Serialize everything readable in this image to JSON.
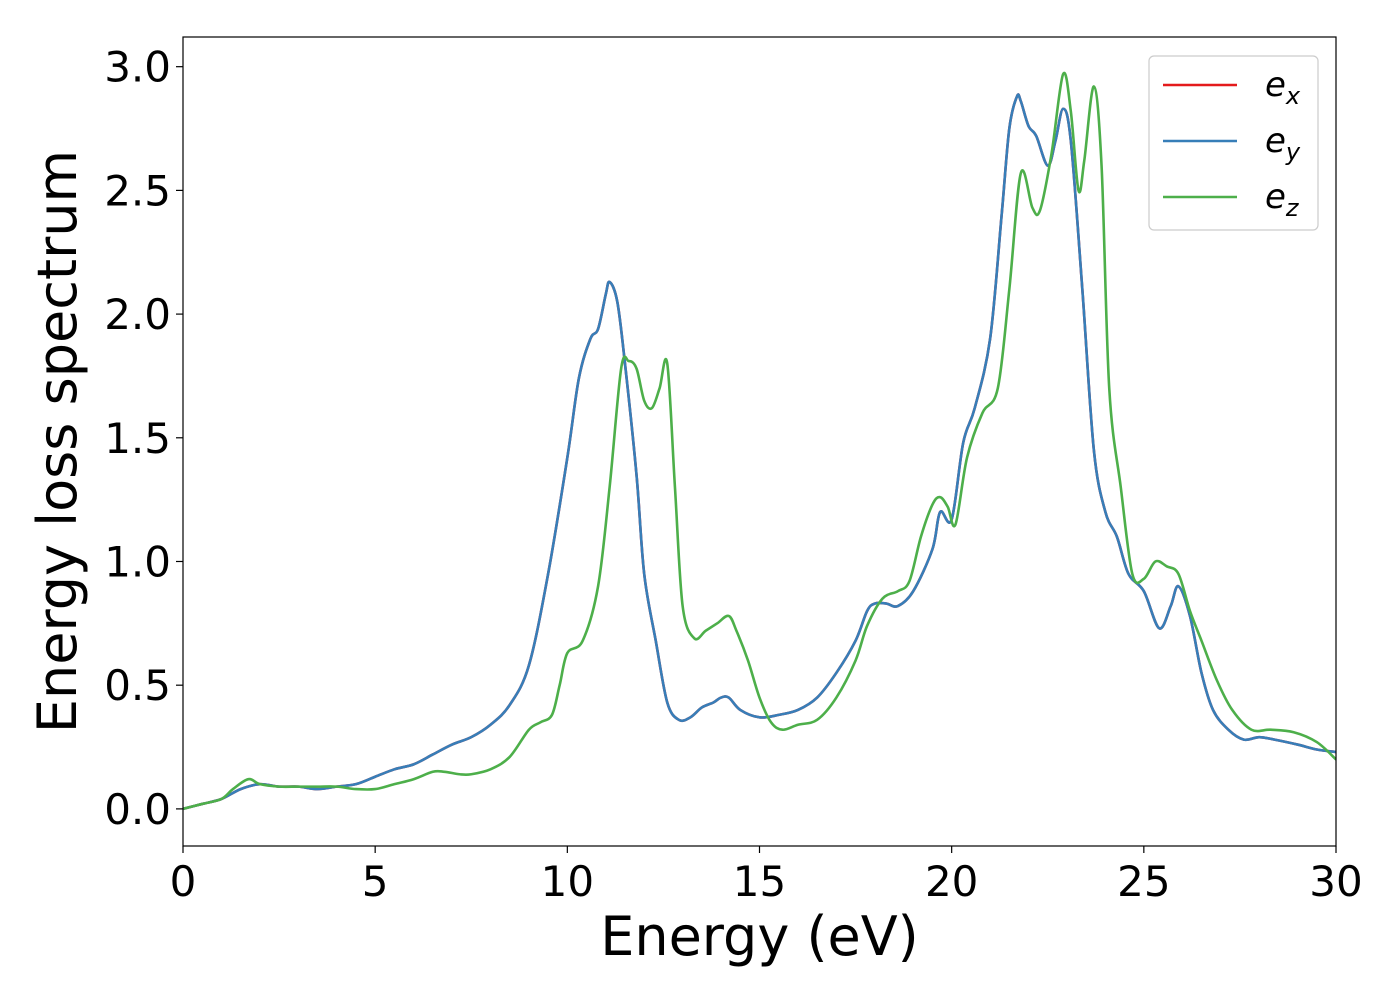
{
  "chart_data": {
    "type": "line",
    "title": "",
    "xlabel": "Energy (eV)",
    "ylabel": "Energy loss spectrum",
    "xlim": [
      0,
      30
    ],
    "ylim": [
      -0.15,
      3.12
    ],
    "xticks": [
      0,
      5,
      10,
      15,
      20,
      25,
      30
    ],
    "xtick_labels": [
      "0",
      "5",
      "10",
      "15",
      "20",
      "25",
      "30"
    ],
    "yticks": [
      0.0,
      0.5,
      1.0,
      1.5,
      2.0,
      2.5,
      3.0
    ],
    "ytick_labels": [
      "0.0",
      "0.5",
      "1.0",
      "1.5",
      "2.0",
      "2.5",
      "3.0"
    ],
    "grid": false,
    "legend_position": "top-right",
    "series": [
      {
        "name": "e_x",
        "legend_base": "e",
        "legend_sub": "x",
        "color": "#e41a1c",
        "x": [
          0,
          0.5,
          1,
          1.5,
          2,
          2.5,
          3,
          3.5,
          4,
          4.5,
          5,
          5.5,
          6,
          6.5,
          7,
          7.5,
          8,
          8.5,
          9,
          9.5,
          10,
          10.3,
          10.6,
          10.8,
          11,
          11.1,
          11.3,
          11.5,
          11.8,
          12,
          12.3,
          12.6,
          12.9,
          13.2,
          13.5,
          13.8,
          14,
          14.2,
          14.5,
          15,
          15.5,
          16,
          16.5,
          17,
          17.5,
          17.8,
          18,
          18.3,
          18.6,
          19,
          19.5,
          19.7,
          20,
          20.3,
          20.6,
          21,
          21.3,
          21.5,
          21.7,
          21.8,
          22,
          22.2,
          22.5,
          22.7,
          22.9,
          23.1,
          23.4,
          23.7,
          24,
          24.3,
          24.6,
          25,
          25.4,
          25.7,
          25.9,
          26.2,
          26.5,
          26.8,
          27.2,
          27.6,
          28,
          28.4,
          29,
          29.5,
          30
        ],
        "y": [
          0,
          0.02,
          0.04,
          0.08,
          0.1,
          0.09,
          0.09,
          0.08,
          0.09,
          0.1,
          0.13,
          0.16,
          0.18,
          0.22,
          0.26,
          0.29,
          0.34,
          0.42,
          0.58,
          0.95,
          1.42,
          1.74,
          1.9,
          1.94,
          2.08,
          2.13,
          2.05,
          1.8,
          1.35,
          0.95,
          0.68,
          0.43,
          0.36,
          0.37,
          0.41,
          0.43,
          0.45,
          0.45,
          0.4,
          0.37,
          0.38,
          0.4,
          0.45,
          0.55,
          0.68,
          0.8,
          0.83,
          0.83,
          0.82,
          0.88,
          1.05,
          1.2,
          1.17,
          1.48,
          1.62,
          1.9,
          2.4,
          2.75,
          2.88,
          2.86,
          2.76,
          2.72,
          2.6,
          2.7,
          2.83,
          2.7,
          2.1,
          1.45,
          1.2,
          1.1,
          0.95,
          0.88,
          0.73,
          0.82,
          0.9,
          0.78,
          0.55,
          0.4,
          0.32,
          0.28,
          0.29,
          0.28,
          0.26,
          0.24,
          0.23
        ]
      },
      {
        "name": "e_y",
        "legend_base": "e",
        "legend_sub": "y",
        "color": "#377eb8",
        "x": [
          0,
          0.5,
          1,
          1.5,
          2,
          2.5,
          3,
          3.5,
          4,
          4.5,
          5,
          5.5,
          6,
          6.5,
          7,
          7.5,
          8,
          8.5,
          9,
          9.5,
          10,
          10.3,
          10.6,
          10.8,
          11,
          11.1,
          11.3,
          11.5,
          11.8,
          12,
          12.3,
          12.6,
          12.9,
          13.2,
          13.5,
          13.8,
          14,
          14.2,
          14.5,
          15,
          15.5,
          16,
          16.5,
          17,
          17.5,
          17.8,
          18,
          18.3,
          18.6,
          19,
          19.5,
          19.7,
          20,
          20.3,
          20.6,
          21,
          21.3,
          21.5,
          21.7,
          21.8,
          22,
          22.2,
          22.5,
          22.7,
          22.9,
          23.1,
          23.4,
          23.7,
          24,
          24.3,
          24.6,
          25,
          25.4,
          25.7,
          25.9,
          26.2,
          26.5,
          26.8,
          27.2,
          27.6,
          28,
          28.4,
          29,
          29.5,
          30
        ],
        "y": [
          0,
          0.02,
          0.04,
          0.08,
          0.1,
          0.09,
          0.09,
          0.08,
          0.09,
          0.1,
          0.13,
          0.16,
          0.18,
          0.22,
          0.26,
          0.29,
          0.34,
          0.42,
          0.58,
          0.95,
          1.42,
          1.74,
          1.9,
          1.94,
          2.08,
          2.13,
          2.05,
          1.8,
          1.35,
          0.95,
          0.68,
          0.43,
          0.36,
          0.37,
          0.41,
          0.43,
          0.45,
          0.45,
          0.4,
          0.37,
          0.38,
          0.4,
          0.45,
          0.55,
          0.68,
          0.8,
          0.83,
          0.83,
          0.82,
          0.88,
          1.05,
          1.2,
          1.17,
          1.48,
          1.62,
          1.9,
          2.4,
          2.75,
          2.88,
          2.86,
          2.76,
          2.72,
          2.6,
          2.7,
          2.83,
          2.7,
          2.1,
          1.45,
          1.2,
          1.1,
          0.95,
          0.88,
          0.73,
          0.82,
          0.9,
          0.78,
          0.55,
          0.4,
          0.32,
          0.28,
          0.29,
          0.28,
          0.26,
          0.24,
          0.23
        ]
      },
      {
        "name": "e_z",
        "legend_base": "e",
        "legend_sub": "z",
        "color": "#4daf4a",
        "x": [
          0,
          0.5,
          1,
          1.3,
          1.7,
          2,
          2.5,
          3,
          3.5,
          4,
          4.5,
          5,
          5.5,
          6,
          6.5,
          6.8,
          7.2,
          7.5,
          8,
          8.5,
          9,
          9.3,
          9.6,
          9.8,
          10,
          10.4,
          10.8,
          11.1,
          11.4,
          11.6,
          11.8,
          12,
          12.2,
          12.4,
          12.6,
          12.8,
          13,
          13.3,
          13.6,
          13.9,
          14.2,
          14.4,
          14.7,
          15,
          15.3,
          15.6,
          16,
          16.5,
          17,
          17.5,
          17.8,
          18.2,
          18.6,
          18.9,
          19.2,
          19.5,
          19.7,
          19.9,
          20.1,
          20.4,
          20.8,
          21.2,
          21.5,
          21.8,
          22.1,
          22.3,
          22.6,
          22.9,
          23.1,
          23.3,
          23.45,
          23.7,
          23.9,
          24.1,
          24.4,
          24.7,
          25,
          25.3,
          25.6,
          25.9,
          26.2,
          26.5,
          26.9,
          27.3,
          27.8,
          28.3,
          28.9,
          29.5,
          30
        ],
        "y": [
          0,
          0.02,
          0.04,
          0.08,
          0.12,
          0.1,
          0.09,
          0.09,
          0.09,
          0.09,
          0.08,
          0.08,
          0.1,
          0.12,
          0.15,
          0.15,
          0.14,
          0.14,
          0.16,
          0.21,
          0.32,
          0.35,
          0.38,
          0.5,
          0.63,
          0.68,
          0.9,
          1.3,
          1.78,
          1.81,
          1.78,
          1.65,
          1.62,
          1.7,
          1.8,
          1.3,
          0.82,
          0.69,
          0.72,
          0.75,
          0.78,
          0.72,
          0.6,
          0.45,
          0.35,
          0.32,
          0.34,
          0.36,
          0.45,
          0.6,
          0.74,
          0.85,
          0.88,
          0.92,
          1.1,
          1.23,
          1.26,
          1.22,
          1.15,
          1.42,
          1.6,
          1.7,
          2.1,
          2.57,
          2.43,
          2.42,
          2.65,
          2.97,
          2.82,
          2.5,
          2.62,
          2.92,
          2.6,
          1.7,
          1.3,
          0.95,
          0.93,
          1.0,
          0.98,
          0.95,
          0.8,
          0.68,
          0.52,
          0.4,
          0.32,
          0.32,
          0.31,
          0.27,
          0.2
        ]
      }
    ]
  }
}
